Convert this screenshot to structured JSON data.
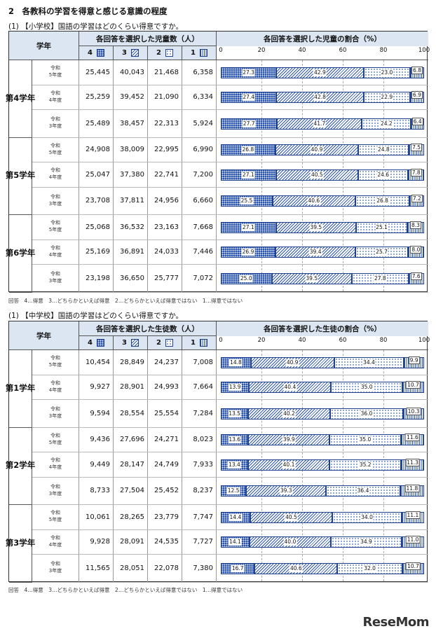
{
  "title": "2　各教科の学習を得意と感じる意識の程度",
  "colors": {
    "dark_blue": "#2c56ad",
    "header_bg": "#dce6f2"
  },
  "sections": [
    {
      "question": "(1) 【小学校】国語の学習はどのくらい得意ですか。",
      "header": {
        "grade": "学年",
        "count_title": "各回答を選択した児童数（人）",
        "ratio_title": "各回答を選択した児童の割合（%）",
        "options": [
          "4",
          "3",
          "2",
          "1"
        ],
        "ticks": [
          "0",
          "20",
          "40",
          "60",
          "80",
          "100"
        ]
      },
      "note": "回答　4…得意　3…どちらかといえば得意　2…どちらかといえば得意ではない　1…得意ではない",
      "grades": [
        {
          "label": [
            "第",
            "4",
            "学",
            "年"
          ],
          "rows": [
            {
              "era": "令和",
              "year": "5年度",
              "counts": [
                "25,445",
                "40,043",
                "21,468",
                "6,358"
              ],
              "pct": [
                27.3,
                42.9,
                23.0,
                6.8
              ]
            },
            {
              "era": "令和",
              "year": "4年度",
              "counts": [
                "25,259",
                "39,452",
                "21,090",
                "6,334"
              ],
              "pct": [
                27.4,
                42.8,
                22.9,
                6.9
              ]
            },
            {
              "era": "令和",
              "year": "3年度",
              "counts": [
                "25,489",
                "38,457",
                "22,313",
                "5,924"
              ],
              "pct": [
                27.7,
                41.7,
                24.2,
                6.4
              ]
            }
          ]
        },
        {
          "label": [
            "第",
            "5",
            "学",
            "年"
          ],
          "rows": [
            {
              "era": "令和",
              "year": "5年度",
              "counts": [
                "24,908",
                "38,009",
                "22,995",
                "6,990"
              ],
              "pct": [
                26.8,
                40.9,
                24.8,
                7.5
              ]
            },
            {
              "era": "令和",
              "year": "4年度",
              "counts": [
                "25,047",
                "37,380",
                "22,741",
                "7,200"
              ],
              "pct": [
                27.1,
                40.5,
                24.6,
                7.8
              ]
            },
            {
              "era": "令和",
              "year": "3年度",
              "counts": [
                "23,708",
                "37,811",
                "24,956",
                "6,660"
              ],
              "pct": [
                25.5,
                40.6,
                26.8,
                7.2
              ]
            }
          ]
        },
        {
          "label": [
            "第",
            "6",
            "学",
            "年"
          ],
          "rows": [
            {
              "era": "令和",
              "year": "5年度",
              "counts": [
                "25,068",
                "36,532",
                "23,163",
                "7,668"
              ],
              "pct": [
                27.1,
                39.5,
                25.1,
                8.3
              ]
            },
            {
              "era": "令和",
              "year": "4年度",
              "counts": [
                "25,169",
                "36,891",
                "24,033",
                "7,446"
              ],
              "pct": [
                26.9,
                39.4,
                25.7,
                8.0
              ]
            },
            {
              "era": "令和",
              "year": "3年度",
              "counts": [
                "23,198",
                "36,650",
                "25,777",
                "7,072"
              ],
              "pct": [
                25.0,
                39.5,
                27.8,
                7.6
              ]
            }
          ]
        }
      ]
    },
    {
      "question": "(1) 【中学校】国語の学習はどのくらい得意ですか。",
      "header": {
        "grade": "学年",
        "count_title": "各回答を選択した生徒数（人）",
        "ratio_title": "各回答を選択した生徒の割合（%）",
        "options": [
          "4",
          "3",
          "2",
          "1"
        ],
        "ticks": [
          "0",
          "20",
          "40",
          "60",
          "80",
          "100"
        ]
      },
      "note": "回答　4…得意　3…どちらかといえば得意　2…どちらかといえば得意ではない　1…得意ではない",
      "grades": [
        {
          "label": [
            "第",
            "1",
            "学",
            "年"
          ],
          "rows": [
            {
              "era": "令和",
              "year": "5年度",
              "counts": [
                "10,454",
                "28,849",
                "24,237",
                "7,008"
              ],
              "pct": [
                14.8,
                40.9,
                34.4,
                9.9
              ]
            },
            {
              "era": "令和",
              "year": "4年度",
              "counts": [
                "9,927",
                "28,901",
                "24,993",
                "7,664"
              ],
              "pct": [
                13.9,
                40.4,
                35.0,
                10.7
              ]
            },
            {
              "era": "令和",
              "year": "3年度",
              "counts": [
                "9,594",
                "28,554",
                "25,554",
                "7,284"
              ],
              "pct": [
                13.5,
                40.2,
                36.0,
                10.3
              ]
            }
          ]
        },
        {
          "label": [
            "第",
            "2",
            "学",
            "年"
          ],
          "rows": [
            {
              "era": "令和",
              "year": "5年度",
              "counts": [
                "9,436",
                "27,696",
                "24,271",
                "8,023"
              ],
              "pct": [
                13.6,
                39.9,
                35.0,
                11.6
              ]
            },
            {
              "era": "令和",
              "year": "4年度",
              "counts": [
                "9,449",
                "28,147",
                "24,749",
                "7,933"
              ],
              "pct": [
                13.4,
                40.1,
                35.2,
                11.3
              ]
            },
            {
              "era": "令和",
              "year": "3年度",
              "counts": [
                "8,733",
                "27,504",
                "25,452",
                "8,237"
              ],
              "pct": [
                12.5,
                39.3,
                36.4,
                11.8
              ]
            }
          ]
        },
        {
          "label": [
            "第",
            "3",
            "学",
            "年"
          ],
          "rows": [
            {
              "era": "令和",
              "year": "5年度",
              "counts": [
                "10,061",
                "28,265",
                "23,779",
                "7,747"
              ],
              "pct": [
                14.4,
                40.5,
                34.0,
                11.1
              ]
            },
            {
              "era": "令和",
              "year": "4年度",
              "counts": [
                "9,928",
                "28,091",
                "24,535",
                "7,727"
              ],
              "pct": [
                14.1,
                40.0,
                34.9,
                11.0
              ]
            },
            {
              "era": "令和",
              "year": "3年度",
              "counts": [
                "11,565",
                "28,051",
                "22,078",
                "7,380"
              ],
              "pct": [
                16.7,
                40.6,
                32.0,
                10.7
              ]
            }
          ]
        }
      ]
    }
  ],
  "logo": "ReseMom"
}
